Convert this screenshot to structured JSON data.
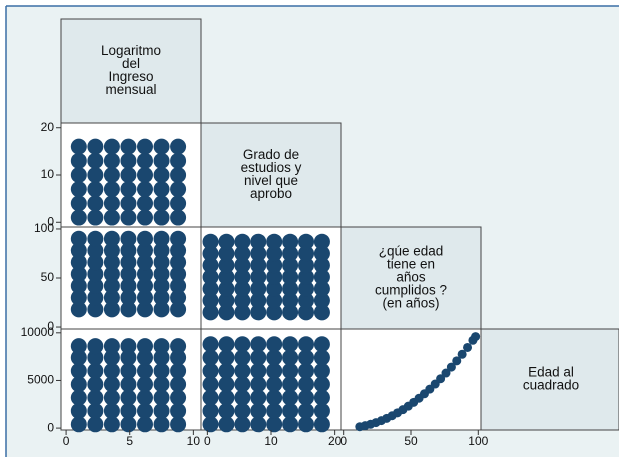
{
  "chart_data": {
    "type": "scatter-matrix",
    "color": "#1a476f",
    "variables": [
      {
        "label": [
          "Logaritmo",
          "del",
          "Ingreso",
          "mensual"
        ],
        "lim": [
          -0.4,
          10.6
        ],
        "ticks": [
          0,
          5,
          10
        ]
      },
      {
        "label": [
          "Grado de",
          "estudios y",
          "nivel que",
          "aprobo"
        ],
        "lim": [
          -1,
          21
        ],
        "ticks": [
          0,
          10,
          20
        ]
      },
      {
        "label": [
          "¿qúe edad",
          "tiene en",
          "años",
          "cumplidos ?",
          "(en años)"
        ],
        "lim": [
          -2,
          102
        ],
        "ticks": [
          0,
          50,
          100
        ]
      },
      {
        "label": [
          "Edad al",
          "cuadrado"
        ],
        "lim": [
          -200,
          10400
        ],
        "ticks": [
          0,
          5000,
          10000
        ]
      }
    ],
    "rows": [
      [
        {
          "x": [
            1,
            2.3,
            3.6,
            4.9,
            6.2,
            7.5,
            8.8,
            1,
            2.3,
            3.6,
            4.9,
            6.2,
            7.5,
            8.8,
            1,
            2.3,
            3.6,
            4.9,
            6.2,
            7.5,
            8.8,
            1,
            2.3,
            3.6,
            4.9,
            6.2,
            7.5,
            8.8,
            1,
            2.3,
            3.6,
            4.9,
            6.2,
            7.5,
            8.8,
            1,
            2.3,
            3.6,
            4.9,
            6.2,
            7.5,
            8.8
          ],
          "values": [
            1,
            1,
            1,
            1,
            1,
            1,
            1,
            4,
            4,
            4,
            4,
            4,
            4,
            4,
            7,
            7,
            7,
            7,
            7,
            7,
            7,
            10,
            10,
            10,
            10,
            10,
            10,
            10,
            13,
            13,
            13,
            13,
            13,
            13,
            13,
            16,
            16,
            16,
            16,
            16,
            16,
            16
          ]
        }
      ],
      [
        {
          "x": [
            1,
            2.3,
            3.6,
            4.9,
            6.2,
            7.5,
            8.8,
            1,
            2.3,
            3.6,
            4.9,
            6.2,
            7.5,
            8.8,
            1,
            2.3,
            3.6,
            4.9,
            6.2,
            7.5,
            8.8,
            1,
            2.3,
            3.6,
            4.9,
            6.2,
            7.5,
            8.8,
            1,
            2.3,
            3.6,
            4.9,
            6.2,
            7.5,
            8.8,
            1,
            2.3,
            3.6,
            4.9,
            6.2,
            7.5,
            8.8,
            1,
            2.3,
            3.6,
            4.9,
            6.2,
            7.5,
            8.8
          ],
          "values": [
            18,
            18,
            18,
            18,
            18,
            18,
            18,
            30,
            30,
            30,
            30,
            30,
            30,
            30,
            42,
            42,
            42,
            42,
            42,
            42,
            42,
            54,
            54,
            54,
            54,
            54,
            54,
            54,
            66,
            66,
            66,
            66,
            66,
            66,
            66,
            78,
            78,
            78,
            78,
            78,
            78,
            78,
            90,
            90,
            90,
            90,
            90,
            90,
            90
          ]
        },
        {
          "x": [
            0.5,
            3,
            5.5,
            8,
            10.5,
            13,
            15.5,
            18,
            0.5,
            3,
            5.5,
            8,
            10.5,
            13,
            15.5,
            18,
            0.5,
            3,
            5.5,
            8,
            10.5,
            13,
            15.5,
            18,
            0.5,
            3,
            5.5,
            8,
            10.5,
            13,
            15.5,
            18,
            0.5,
            3,
            5.5,
            8,
            10.5,
            13,
            15.5,
            18,
            0.5,
            3,
            5.5,
            8,
            10.5,
            13,
            15.5,
            18,
            0.5,
            3,
            5.5,
            8,
            10.5,
            13,
            15.5,
            18
          ],
          "values": [
            15,
            15,
            15,
            15,
            15,
            15,
            15,
            15,
            27,
            27,
            27,
            27,
            27,
            27,
            27,
            27,
            39,
            39,
            39,
            39,
            39,
            39,
            39,
            39,
            51,
            51,
            51,
            51,
            51,
            51,
            51,
            51,
            63,
            63,
            63,
            63,
            63,
            63,
            63,
            63,
            75,
            75,
            75,
            75,
            75,
            75,
            75,
            75,
            87,
            87,
            87,
            87,
            87,
            87,
            87,
            87
          ]
        }
      ],
      [
        {
          "x": [
            1,
            2.3,
            3.6,
            4.9,
            6.2,
            7.5,
            8.8,
            1,
            2.3,
            3.6,
            4.9,
            6.2,
            7.5,
            8.8,
            1,
            2.3,
            3.6,
            4.9,
            6.2,
            7.5,
            8.8,
            1,
            2.3,
            3.6,
            4.9,
            6.2,
            7.5,
            8.8,
            1,
            2.3,
            3.6,
            4.9,
            6.2,
            7.5,
            8.8,
            1,
            2.3,
            3.6,
            4.9,
            6.2,
            7.5,
            8.8,
            1,
            2.3,
            3.6,
            4.9,
            6.2,
            7.5,
            8.8
          ],
          "values": [
            400,
            400,
            400,
            400,
            400,
            400,
            400,
            1800,
            1800,
            1800,
            1800,
            1800,
            1800,
            1800,
            3200,
            3200,
            3200,
            3200,
            3200,
            3200,
            3200,
            4600,
            4600,
            4600,
            4600,
            4600,
            4600,
            4600,
            6000,
            6000,
            6000,
            6000,
            6000,
            6000,
            6000,
            7400,
            7400,
            7400,
            7400,
            7400,
            7400,
            7400,
            8600,
            8600,
            8600,
            8600,
            8600,
            8600,
            8600
          ]
        },
        {
          "x": [
            0.5,
            3,
            5.5,
            8,
            10.5,
            13,
            15.5,
            18,
            0.5,
            3,
            5.5,
            8,
            10.5,
            13,
            15.5,
            18,
            0.5,
            3,
            5.5,
            8,
            10.5,
            13,
            15.5,
            18,
            0.5,
            3,
            5.5,
            8,
            10.5,
            13,
            15.5,
            18,
            0.5,
            3,
            5.5,
            8,
            10.5,
            13,
            15.5,
            18,
            0.5,
            3,
            5.5,
            8,
            10.5,
            13,
            15.5,
            18,
            0.5,
            3,
            5.5,
            8,
            10.5,
            13,
            15.5,
            18
          ],
          "values": [
            400,
            400,
            400,
            400,
            400,
            400,
            400,
            400,
            1800,
            1800,
            1800,
            1800,
            1800,
            1800,
            1800,
            1800,
            3200,
            3200,
            3200,
            3200,
            3200,
            3200,
            3200,
            3200,
            4600,
            4600,
            4600,
            4600,
            4600,
            4600,
            4600,
            4600,
            6000,
            6000,
            6000,
            6000,
            6000,
            6000,
            6000,
            6000,
            7400,
            7400,
            7400,
            7400,
            7400,
            7400,
            7400,
            7400,
            8800,
            8800,
            8800,
            8800,
            8800,
            8800,
            8800,
            8800
          ]
        },
        {
          "x": [
            12,
            16,
            20,
            24,
            28,
            32,
            36,
            40,
            44,
            48,
            52,
            56,
            60,
            64,
            68,
            72,
            76,
            80,
            84,
            88,
            92,
            96,
            98
          ],
          "values": [
            144,
            256,
            400,
            576,
            784,
            1024,
            1296,
            1600,
            1936,
            2304,
            2704,
            3136,
            3600,
            4096,
            4624,
            5184,
            5776,
            6400,
            7056,
            7744,
            8464,
            9216,
            9604
          ]
        }
      ]
    ]
  }
}
